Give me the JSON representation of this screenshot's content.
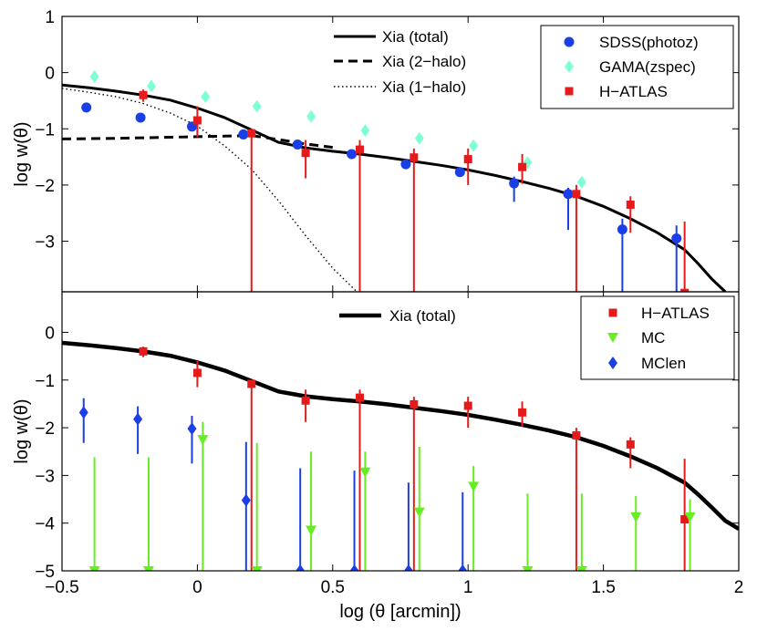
{
  "chart_data": [
    {
      "type": "scatter",
      "panel": "top",
      "xlabel": "",
      "ylabel": "log w(θ)",
      "xlim": [
        -0.5,
        2
      ],
      "ylim": [
        -3.9,
        1
      ],
      "yticks": [
        -3,
        -2,
        -1,
        0,
        1
      ],
      "ytick_labels": [
        "−3",
        "−2",
        "−1",
        "0",
        "1"
      ],
      "legend_left": {
        "position": "top-center",
        "entries": [
          "Xia (total)",
          "Xia (2−halo)",
          "Xia (1−halo)"
        ]
      },
      "legend_right": {
        "position": "top-right",
        "entries": [
          "SDSS(photoz)",
          "GAMA(zspec)",
          "H−ATLAS"
        ]
      },
      "lines": [
        {
          "name": "Xia (total)",
          "style": "solid",
          "x": [
            -0.5,
            -0.4,
            -0.3,
            -0.2,
            -0.1,
            0.0,
            0.1,
            0.2,
            0.3,
            0.4,
            0.5,
            0.6,
            0.7,
            0.8,
            0.9,
            1.0,
            1.1,
            1.2,
            1.3,
            1.4,
            1.5,
            1.6,
            1.7,
            1.8,
            1.85,
            1.9,
            1.95
          ],
          "y": [
            -0.22,
            -0.27,
            -0.33,
            -0.4,
            -0.49,
            -0.63,
            -0.8,
            -1.02,
            -1.24,
            -1.34,
            -1.4,
            -1.45,
            -1.51,
            -1.58,
            -1.65,
            -1.73,
            -1.83,
            -1.94,
            -2.06,
            -2.2,
            -2.38,
            -2.6,
            -2.85,
            -3.15,
            -3.4,
            -3.67,
            -3.9
          ]
        },
        {
          "name": "Xia (2−halo)",
          "style": "dashed",
          "x": [
            -0.5,
            -0.3,
            -0.1,
            0.0,
            0.1,
            0.2,
            0.3,
            0.4,
            0.5
          ],
          "y": [
            -1.18,
            -1.17,
            -1.15,
            -1.14,
            -1.13,
            -1.12,
            -1.19,
            -1.27,
            -1.33
          ]
        },
        {
          "name": "Xia (1−halo)",
          "style": "dotted",
          "x": [
            -0.5,
            -0.4,
            -0.3,
            -0.2,
            -0.1,
            0.0,
            0.1,
            0.2,
            0.3,
            0.4,
            0.5,
            0.6
          ],
          "y": [
            -0.28,
            -0.35,
            -0.43,
            -0.55,
            -0.72,
            -0.95,
            -1.3,
            -1.72,
            -2.28,
            -2.9,
            -3.48,
            -3.95
          ]
        }
      ],
      "series": [
        {
          "name": "SDSS(photoz)",
          "color": "#1a3fe6",
          "marker": "circle",
          "x": [
            -0.41,
            -0.21,
            -0.02,
            0.17,
            0.37,
            0.57,
            0.77,
            0.97,
            1.17,
            1.37,
            1.57,
            1.77
          ],
          "y": [
            -0.62,
            -0.8,
            -0.96,
            -1.1,
            -1.28,
            -1.45,
            -1.63,
            -1.77,
            -1.97,
            -2.16,
            -2.79,
            -2.95
          ],
          "err_lo": [
            0,
            0,
            0,
            0,
            0,
            0,
            0,
            0,
            -2.3,
            -2.8,
            -3.9,
            -3.9
          ],
          "err_hi": [
            0,
            0,
            0,
            0,
            0,
            0,
            0,
            0,
            -1.85,
            -2.05,
            -2.6,
            -2.72
          ]
        },
        {
          "name": "GAMA(zspec)",
          "color": "#7fffd4",
          "marker": "diamond",
          "x": [
            -0.38,
            -0.17,
            0.03,
            0.22,
            0.42,
            0.62,
            0.82,
            1.02,
            1.22,
            1.42
          ],
          "y": [
            -0.07,
            -0.24,
            -0.43,
            -0.6,
            -0.78,
            -1.03,
            -1.17,
            -1.3,
            -1.6,
            -1.95
          ],
          "err_lo": [],
          "err_hi": []
        },
        {
          "name": "H−ATLAS",
          "color": "#e51b1b",
          "marker": "square",
          "x": [
            -0.2,
            0.0,
            0.2,
            0.4,
            0.6,
            0.8,
            1.0,
            1.2,
            1.4,
            1.6,
            1.8
          ],
          "y": [
            -0.4,
            -0.85,
            -1.08,
            -1.43,
            -1.37,
            -1.51,
            -1.54,
            -1.68,
            -2.16,
            -2.35,
            -3.92
          ],
          "err_lo": [
            -0.52,
            -1.15,
            -3.9,
            -1.88,
            -3.9,
            -3.9,
            -2.0,
            -1.98,
            -3.9,
            -2.85,
            -3.9
          ],
          "err_hi": [
            -0.3,
            -0.6,
            -1.0,
            -1.2,
            -1.2,
            -1.35,
            -1.35,
            -1.45,
            -2.0,
            -2.2,
            -2.65
          ]
        }
      ]
    },
    {
      "type": "scatter",
      "panel": "bottom",
      "xlabel": "log (θ [arcmin])",
      "ylabel": "log w(θ)",
      "xlim": [
        -0.5,
        2
      ],
      "ylim": [
        -5,
        0.85
      ],
      "xticks": [
        -0.5,
        0,
        0.5,
        1,
        1.5,
        2
      ],
      "xtick_labels": [
        "−0.5",
        "0",
        "0.5",
        "1",
        "1.5",
        "2"
      ],
      "yticks": [
        -5,
        -4,
        -3,
        -2,
        -1,
        0
      ],
      "ytick_labels": [
        "−5",
        "−4",
        "−3",
        "−2",
        "−1",
        "0"
      ],
      "legend_left": {
        "position": "top-center",
        "entries": [
          "Xia (total)"
        ]
      },
      "legend_right": {
        "position": "top-right",
        "entries": [
          "H−ATLAS",
          "MC",
          "MClen"
        ]
      },
      "lines": [
        {
          "name": "Xia (total)",
          "style": "solid-thick",
          "x": [
            -0.5,
            -0.4,
            -0.3,
            -0.2,
            -0.1,
            0.0,
            0.1,
            0.2,
            0.3,
            0.4,
            0.5,
            0.6,
            0.7,
            0.8,
            0.9,
            1.0,
            1.1,
            1.2,
            1.3,
            1.4,
            1.5,
            1.6,
            1.7,
            1.8,
            1.85,
            1.9,
            1.95,
            2.0
          ],
          "y": [
            -0.22,
            -0.27,
            -0.33,
            -0.4,
            -0.49,
            -0.63,
            -0.8,
            -1.02,
            -1.24,
            -1.34,
            -1.4,
            -1.45,
            -1.51,
            -1.58,
            -1.65,
            -1.73,
            -1.83,
            -1.94,
            -2.06,
            -2.2,
            -2.38,
            -2.6,
            -2.85,
            -3.15,
            -3.4,
            -3.67,
            -3.95,
            -4.12
          ]
        }
      ],
      "series": [
        {
          "name": "H−ATLAS",
          "color": "#e51b1b",
          "marker": "square",
          "x": [
            -0.2,
            0.0,
            0.2,
            0.4,
            0.6,
            0.8,
            1.0,
            1.2,
            1.4,
            1.6,
            1.8
          ],
          "y": [
            -0.4,
            -0.85,
            -1.08,
            -1.43,
            -1.37,
            -1.51,
            -1.54,
            -1.68,
            -2.16,
            -2.35,
            -3.92
          ],
          "err_lo": [
            -0.52,
            -1.15,
            -5.0,
            -1.88,
            -5.0,
            -5.0,
            -2.0,
            -1.98,
            -5.0,
            -2.85,
            -5.0
          ],
          "err_hi": [
            -0.3,
            -0.6,
            -1.0,
            -1.2,
            -1.2,
            -1.35,
            -1.35,
            -1.45,
            -2.0,
            -2.2,
            -2.65
          ]
        },
        {
          "name": "MC",
          "color": "#66ee22",
          "marker": "triangle-down",
          "x": [
            -0.38,
            -0.18,
            0.02,
            0.22,
            0.42,
            0.62,
            0.82,
            1.02,
            1.22,
            1.42,
            1.62,
            1.82
          ],
          "y": [
            -5.0,
            -5.0,
            -2.25,
            -5.0,
            -4.15,
            -2.93,
            -3.77,
            -3.23,
            -5.0,
            -5.0,
            -3.87,
            -3.87
          ],
          "err_lo": [
            -5.0,
            -5.0,
            -5.0,
            -5.0,
            -5.0,
            -5.0,
            -5.0,
            -5.0,
            -5.0,
            -5.0,
            -5.0,
            -5.0
          ],
          "err_hi": [
            -2.62,
            -2.62,
            -1.88,
            -2.32,
            -2.5,
            -2.5,
            -2.4,
            -2.8,
            -3.38,
            -3.38,
            -3.43,
            -3.5
          ]
        },
        {
          "name": "MClen",
          "color": "#1a3fe6",
          "marker": "diamond",
          "x": [
            -0.42,
            -0.22,
            -0.02,
            0.18,
            0.38,
            0.58,
            0.78,
            0.98
          ],
          "y": [
            -1.68,
            -1.82,
            -2.02,
            -3.52,
            -5.0,
            -5.0,
            -5.0,
            -5.0
          ],
          "err_lo": [
            -2.32,
            -2.55,
            -2.75,
            -5.0,
            -5.0,
            -5.0,
            -5.0,
            -5.0
          ],
          "err_hi": [
            -1.38,
            -1.55,
            -1.75,
            -2.3,
            -2.85,
            -2.9,
            -3.15,
            -3.35
          ]
        }
      ]
    }
  ]
}
